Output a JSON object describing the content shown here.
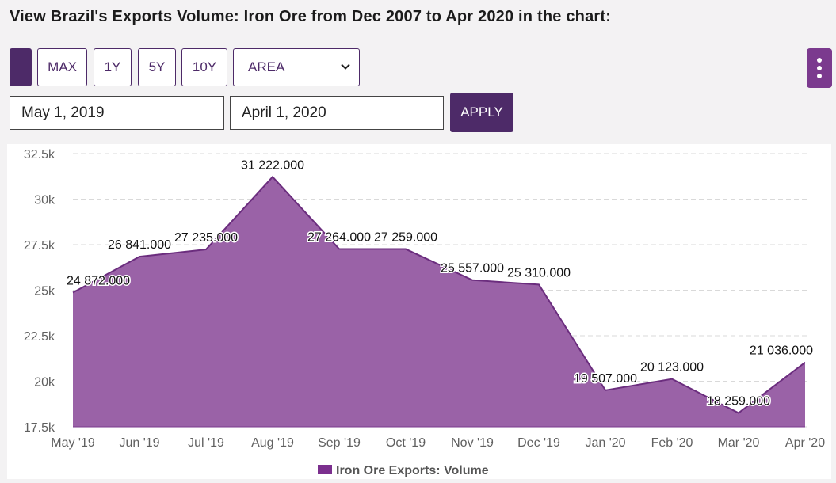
{
  "header": {
    "title": "View Brazil's Exports Volume: Iron Ore from Dec 2007 to Apr 2020 in the chart:"
  },
  "toolbar": {
    "range_buttons": [
      "MAX",
      "1Y",
      "5Y",
      "10Y"
    ],
    "chart_type_selected": "AREA",
    "start_date": "May 1, 2019",
    "end_date": "April 1, 2020",
    "apply_label": "APPLY"
  },
  "colors": {
    "accent": "#4d2a68",
    "area_fill": "#9a62a7",
    "area_line": "#6b2d7e",
    "menu": "#7b3a8e"
  },
  "chart_data": {
    "type": "area",
    "categories": [
      "May '19",
      "Jun '19",
      "Jul '19",
      "Aug '19",
      "Sep '19",
      "Oct '19",
      "Nov '19",
      "Dec '19",
      "Jan '20",
      "Feb '20",
      "Mar '20",
      "Apr '20"
    ],
    "series": [
      {
        "name": "Iron Ore Exports: Volume",
        "values": [
          24872,
          26841,
          27235,
          31222,
          27264,
          27259,
          25557,
          25310,
          19507,
          20123,
          18259,
          21036
        ],
        "data_labels": [
          "24 872.000",
          "26 841.000",
          "27 235.000",
          "31 222.000",
          "27 264.000",
          "27 259.000",
          "25 557.000",
          "25 310.000",
          "19 507.000",
          "20 123.000",
          "18 259.000",
          "21 036.000"
        ]
      }
    ],
    "y_ticks": [
      "32.5k",
      "30k",
      "27.5k",
      "25k",
      "22.5k",
      "20k",
      "17.5k"
    ],
    "y_tick_values": [
      32500,
      30000,
      27500,
      25000,
      22500,
      20000,
      17500
    ],
    "ylim": [
      17500,
      32500
    ],
    "grid": true,
    "legend_position": "bottom"
  }
}
